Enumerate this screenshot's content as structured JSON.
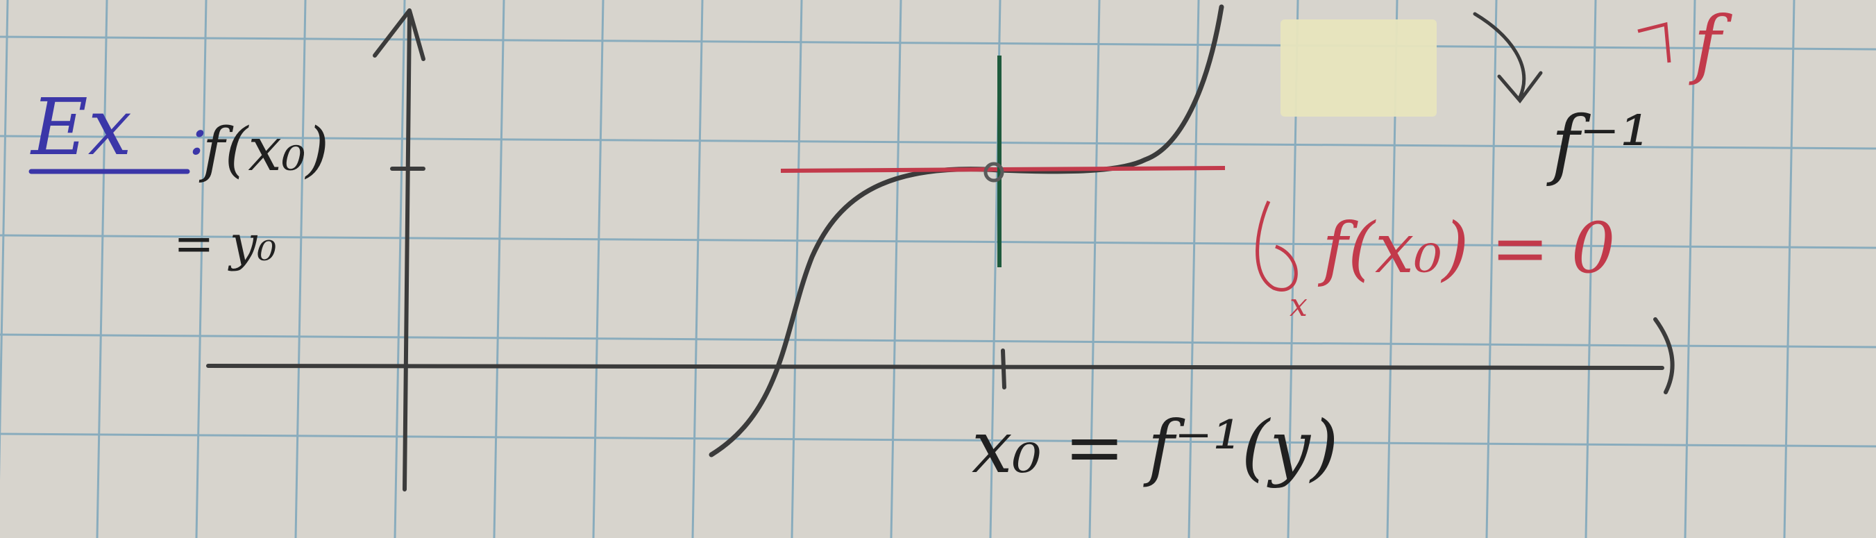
{
  "notes": {
    "label_ex": "Ex",
    "label_colon": ":",
    "label_f_of_x0": "f(x₀)",
    "label_equals_y0": "= y₀",
    "label_x0_eq_finv_y": "x₀ = f⁻¹(y)",
    "label_f_inverse": "f⁻¹",
    "label_top_f": "f",
    "label_derivative_zero": "f(x₀) = 0",
    "label_dy": "d",
    "label_dx": "x"
  },
  "colors": {
    "paper": "#d9d6cf",
    "grid": "#6f9fb8",
    "pencil": "#3b3b3b",
    "ink_blue": "#3b36a8",
    "ink_red": "#c23a4b",
    "ink_green": "#1e5a3c",
    "ink_black": "#202020",
    "tape": "#e6e3b8"
  }
}
